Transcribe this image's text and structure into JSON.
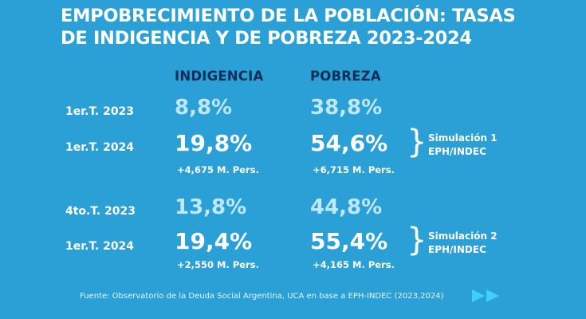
{
  "title": {
    "line1": "EMPOBRECIMIENTO DE LA POBLACIÓN: TASAS",
    "line2": "DE INDIGENCIA Y DE POBREZA 2023-2024"
  },
  "columns": {
    "indigencia": "INDIGENCIA",
    "pobreza": "POBREZA"
  },
  "block1": {
    "row1": {
      "period": "1er.T. 2023",
      "indigencia": "8,8%",
      "pobreza": "38,8%"
    },
    "row2": {
      "period": "1er.T. 2024",
      "indigencia": "19,8%",
      "pobreza": "54,6%",
      "indigencia_note": "+4,675 M. Pers.",
      "pobreza_note": "+6,715 M. Pers."
    },
    "sim_line1": "Simulación 1",
    "sim_line2": "EPH/INDEC"
  },
  "block2": {
    "row1": {
      "period": "4to.T. 2023",
      "indigencia": "13,8%",
      "pobreza": "44,8%"
    },
    "row2": {
      "period": "1er.T. 2024",
      "indigencia": "19,4%",
      "pobreza": "55,4%",
      "indigencia_note": "+2,550 M. Pers.",
      "pobreza_note": "+4,165 M. Pers."
    },
    "sim_line1": "Simulación 2",
    "sim_line2": "EPH/INDEC"
  },
  "footer": "Fuente: Observatorio de la Deuda Social Argentina, UCA en base a EPH-INDEC (2023,2024)",
  "colors": {
    "background": "#2aa0d6",
    "column_header": "#0f2f57",
    "light_value": "#bfe8fb",
    "nav_icon": "#3fd0f5"
  },
  "icons": {
    "nav": "double-chevron-right-icon"
  },
  "chart_data": {
    "type": "table",
    "title": "EMPOBRECIMIENTO DE LA POBLACIÓN: TASAS DE INDIGENCIA Y DE POBREZA 2023-2024",
    "columns": [
      "INDIGENCIA",
      "POBREZA"
    ],
    "rows": [
      {
        "period": "1er.T. 2023",
        "indigencia": 8.8,
        "pobreza": 38.8
      },
      {
        "period": "1er.T. 2024",
        "indigencia": 19.8,
        "pobreza": 54.6,
        "indigencia_note": "+4,675 M. Pers.",
        "pobreza_note": "+6,715 M. Pers.",
        "group": "Simulación 1 EPH/INDEC"
      },
      {
        "period": "4to.T. 2023",
        "indigencia": 13.8,
        "pobreza": 44.8
      },
      {
        "period": "1er.T. 2024",
        "indigencia": 19.4,
        "pobreza": 55.4,
        "indigencia_note": "+2,550 M. Pers.",
        "pobreza_note": "+4,165 M. Pers.",
        "group": "Simulación 2 EPH/INDEC"
      }
    ],
    "unit": "%"
  }
}
